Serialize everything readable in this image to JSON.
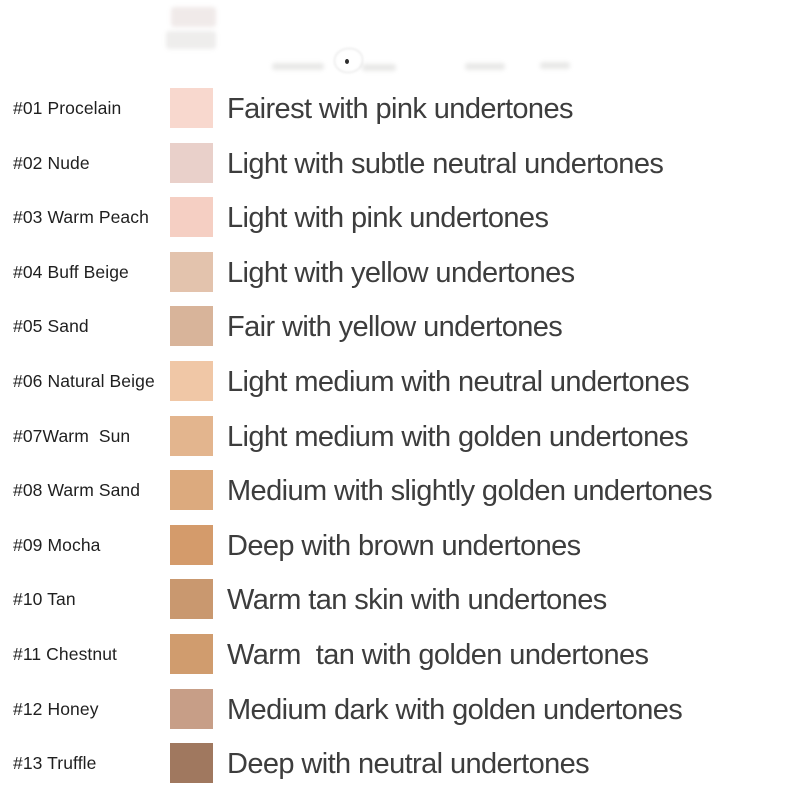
{
  "page": {
    "background": "#ffffff",
    "text_color": "#3d3d3d",
    "label_color": "#1f1f1f"
  },
  "chart_data": {
    "type": "table",
    "title": "",
    "columns": [
      "shade_label",
      "swatch_color",
      "description"
    ],
    "rows": [
      {
        "label": "#01 Procelain",
        "color": "#F8D8CE",
        "description": "Fairest with pink undertones"
      },
      {
        "label": "#02 Nude",
        "color": "#E9D0CA",
        "description": "Light with subtle neutral undertones"
      },
      {
        "label": "#03 Warm Peach",
        "color": "#F5CFC3",
        "description": "Light with pink undertones"
      },
      {
        "label": "#04 Buff Beige",
        "color": "#E3C3AD",
        "description": "Light with yellow undertones"
      },
      {
        "label": "#05 Sand",
        "color": "#D8B49A",
        "description": "Fair with yellow undertones"
      },
      {
        "label": "#06 Natural Beige",
        "color": "#F0C7A6",
        "description": "Light medium with neutral undertones"
      },
      {
        "label": "#07Warm  Sun",
        "color": "#E3B58E",
        "description": "Light medium with golden undertones"
      },
      {
        "label": "#08 Warm Sand",
        "color": "#DCAA7E",
        "description": "Medium with slightly golden undertones"
      },
      {
        "label": "#09 Mocha",
        "color": "#D49B6B",
        "description": "Deep with brown undertones"
      },
      {
        "label": "#10 Tan",
        "color": "#C9986F",
        "description": "Warm tan skin with undertones"
      },
      {
        "label": "#11 Chestnut",
        "color": "#D09C6E",
        "description": "Warm  tan with golden undertones"
      },
      {
        "label": "#12 Honey",
        "color": "#C79E87",
        "description": "Medium dark with golden undertones"
      },
      {
        "label": "#13 Truffle",
        "color": "#A0785F",
        "description": "Deep with neutral undertones"
      }
    ]
  }
}
